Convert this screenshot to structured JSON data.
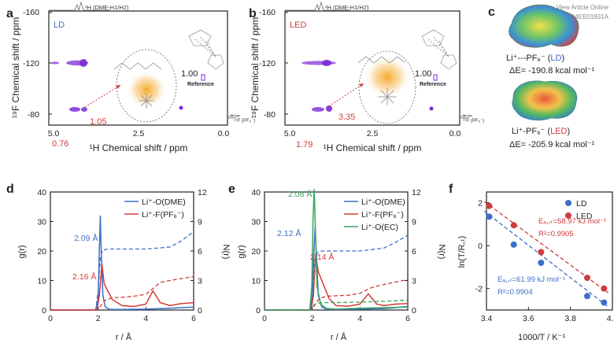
{
  "colors": {
    "blue": "#3b6fc9",
    "red": "#d13b3b",
    "green": "#3aa45a",
    "purple": "#7a2bd6",
    "orange": "#f0a020",
    "axis": "#222222",
    "text": "#222222"
  },
  "watermark": {
    "line1": "View Article Online",
    "line2": "DOI: 10.1039/D4EE01831A"
  },
  "panels": {
    "a": {
      "letter": "a",
      "label": "LD",
      "top_trace": "¹H (DME-H1/H2)",
      "side_trace": "¹⁹F (PF₆⁻)",
      "reference_value": "1.00",
      "reference_label": "Reference",
      "cross_peak_1": "1.05",
      "cross_peak_2": "0.76",
      "xlabel": "¹H Chemical shift / ppm",
      "ylabel": "¹⁹F Chemical shift / ppm",
      "xticks": [
        "5.0",
        "2.5",
        "0.0"
      ],
      "yticks": [
        "-160",
        "-120",
        "-80"
      ]
    },
    "b": {
      "letter": "b",
      "label": "LED",
      "top_trace": "¹H (DME-H1/H2)",
      "side_trace": "¹⁹F (PF₆⁻)",
      "reference_value": "1.00",
      "reference_label": "Reference",
      "cross_peak_1": "3.35",
      "cross_peak_2": "1.79",
      "xlabel": "¹H Chemical shift / ppm",
      "ylabel": "¹⁹F Chemical shift / ppm",
      "xticks": [
        "5.0",
        "2.5",
        "0.0"
      ],
      "yticks": [
        "-160",
        "-120",
        "-80"
      ]
    },
    "c": {
      "letter": "c",
      "ld_label_prefix": "Li⁺---PF₆⁻ (",
      "ld_label_tag": "LD",
      "ld_label_suffix": ")",
      "ld_energy": "ΔE= -190.8 kcal mol⁻¹",
      "led_label_prefix": "Li⁺-PF₆⁻ (",
      "led_label_tag": "LED",
      "led_label_suffix": ")",
      "led_energy": "ΔE= -205.9 kcal mol⁻¹"
    },
    "d": {
      "letter": "d",
      "legend": [
        "Li⁺-O(DME)",
        "Li⁺-F(PF₆⁻)"
      ],
      "peak_label_1": "2.09 Å",
      "peak_label_2": "2.16 Å",
      "xlabel": "r / Å",
      "ylabel_left": "g(r)",
      "ylabel_right": "N(r)"
    },
    "e": {
      "letter": "e",
      "legend": [
        "Li⁺-O(DME)",
        "Li⁺-F(PF₆⁻)",
        "Li⁺-O(EC)"
      ],
      "peak_label_1": "2.08 Å",
      "peak_label_2": "2.12 Å",
      "peak_label_3": "2.14 Å",
      "xlabel": "r / Å",
      "ylabel_left": "g(r)",
      "ylabel_right": "N(r)"
    },
    "f": {
      "letter": "f",
      "legend": [
        "LD",
        "LED"
      ],
      "led_ea_text": "Eₐ,꜀ₜ=58.97 kJ mol⁻¹",
      "led_r2_text": "R²=0.9905",
      "ld_ea_text": "Eₐ,꜀ₜ=61.99 kJ mol⁻¹",
      "ld_r2_text": "R²=0.9904",
      "xlabel": "1000/T / K⁻¹",
      "ylabel": "ln(T/R꜀ₜ)"
    }
  },
  "chart_data": [
    {
      "id": "d",
      "type": "line",
      "title": "",
      "xlabel": "r / Å",
      "ylabel": "g(r)",
      "ylabel_right": "N(r)",
      "xlim": [
        0,
        6
      ],
      "ylim": [
        0,
        40
      ],
      "ylim_right": [
        0,
        12
      ],
      "xticks": [
        0,
        2,
        4,
        6
      ],
      "yticks": [
        0,
        10,
        20,
        30,
        40
      ],
      "yticks_right": [
        0,
        3,
        6,
        9,
        12
      ],
      "series": [
        {
          "name": "Li⁺-O(DME)",
          "color": "#3b6fc9",
          "style": "solid",
          "x": [
            0,
            1.9,
            2.0,
            2.05,
            2.09,
            2.13,
            2.2,
            2.3,
            2.5,
            3.0,
            4.0,
            5.0,
            5.5,
            6.0
          ],
          "y": [
            0,
            0,
            4,
            20,
            32,
            20,
            5,
            1,
            0.2,
            0.2,
            0.3,
            0.6,
            0.8,
            1.0
          ]
        },
        {
          "name": "Li⁺-F(PF₆⁻)",
          "color": "#d13b3b",
          "style": "solid",
          "x": [
            0,
            1.95,
            2.05,
            2.16,
            2.25,
            2.4,
            2.6,
            3.0,
            3.5,
            4.0,
            4.3,
            4.6,
            5.0,
            5.5,
            6.0
          ],
          "y": [
            0,
            0,
            5,
            15.5,
            9,
            6.5,
            3.5,
            1.5,
            1.2,
            2.0,
            6.5,
            2.5,
            1.5,
            2.2,
            2.5
          ]
        },
        {
          "name": "N(r) Li⁺-O(DME)",
          "color": "#3b6fc9",
          "style": "dashed",
          "axis": "right",
          "x": [
            0,
            1.9,
            2.0,
            2.1,
            2.2,
            2.4,
            3.0,
            4.0,
            5.0,
            5.4,
            5.8,
            6.0
          ],
          "y": [
            0,
            0,
            2,
            5.5,
            6.1,
            6.2,
            6.2,
            6.2,
            6.4,
            6.9,
            7.6,
            8.0
          ]
        },
        {
          "name": "N(r) Li⁺-F(PF₆⁻)",
          "color": "#d13b3b",
          "style": "dashed",
          "axis": "right",
          "x": [
            0,
            1.95,
            2.1,
            2.3,
            2.6,
            3.0,
            3.5,
            4.0,
            4.3,
            4.6,
            5.0,
            5.5,
            6.0
          ],
          "y": [
            0,
            0,
            0.4,
            1.0,
            1.25,
            1.3,
            1.4,
            1.6,
            2.2,
            2.8,
            3.0,
            3.2,
            3.4
          ]
        }
      ]
    },
    {
      "id": "e",
      "type": "line",
      "title": "",
      "xlabel": "r / Å",
      "ylabel": "g(r)",
      "ylabel_right": "N(r)",
      "xlim": [
        0,
        6
      ],
      "ylim": [
        0,
        40
      ],
      "ylim_right": [
        0,
        12
      ],
      "xticks": [
        0,
        2,
        4,
        6
      ],
      "yticks": [
        0,
        10,
        20,
        30,
        40
      ],
      "yticks_right": [
        0,
        3,
        6,
        9,
        12
      ],
      "series": [
        {
          "name": "Li⁺-O(DME)",
          "color": "#3b6fc9",
          "style": "solid",
          "x": [
            0,
            1.9,
            2.0,
            2.06,
            2.12,
            2.18,
            2.25,
            2.4,
            2.6,
            3.0,
            4.0,
            5.0,
            5.5,
            6.0
          ],
          "y": [
            0,
            0,
            4,
            18,
            28,
            18,
            5,
            1,
            0.3,
            0.2,
            0.3,
            0.5,
            0.8,
            1.2
          ]
        },
        {
          "name": "Li⁺-F(PF₆⁻)",
          "color": "#d13b3b",
          "style": "solid",
          "x": [
            0,
            1.95,
            2.05,
            2.14,
            2.25,
            2.45,
            2.7,
            3.0,
            3.5,
            4.0,
            4.35,
            4.7,
            5.0,
            5.5,
            6.0
          ],
          "y": [
            0,
            0,
            5,
            19,
            13,
            9,
            4,
            1.5,
            1.3,
            2.0,
            5.5,
            2.0,
            1.5,
            2.0,
            2.2
          ]
        },
        {
          "name": "Li⁺-O(EC)",
          "color": "#3aa45a",
          "style": "solid",
          "x": [
            0,
            1.9,
            1.98,
            2.03,
            2.08,
            2.13,
            2.2,
            2.35,
            2.6,
            3.0,
            4.0,
            5.0,
            6.0
          ],
          "y": [
            0,
            0,
            8,
            30,
            41,
            28,
            8,
            2,
            0.5,
            0.3,
            0.6,
            0.8,
            1.0
          ]
        },
        {
          "name": "N(r) Li⁺-O(DME)",
          "color": "#3b6fc9",
          "style": "dashed",
          "axis": "right",
          "x": [
            0,
            1.9,
            2.0,
            2.1,
            2.2,
            2.4,
            3.0,
            4.0,
            5.0,
            5.5,
            6.0
          ],
          "y": [
            0,
            0,
            1.5,
            5.0,
            5.8,
            6.0,
            6.0,
            6.0,
            6.3,
            6.9,
            7.6
          ]
        },
        {
          "name": "N(r) Li⁺-F(PF₆⁻)",
          "color": "#d13b3b",
          "style": "dashed",
          "axis": "right",
          "x": [
            0,
            1.95,
            2.1,
            2.3,
            2.6,
            3.0,
            3.5,
            4.0,
            4.4,
            4.8,
            5.2,
            5.6,
            6.0
          ],
          "y": [
            0,
            0,
            0.5,
            1.2,
            1.4,
            1.45,
            1.5,
            1.7,
            2.2,
            2.5,
            2.7,
            2.9,
            3.1
          ]
        },
        {
          "name": "N(r) Li⁺-O(EC)",
          "color": "#3aa45a",
          "style": "dashed",
          "axis": "right",
          "x": [
            0,
            1.9,
            2.0,
            2.1,
            2.2,
            2.5,
            3.0,
            4.0,
            5.0,
            6.0
          ],
          "y": [
            0,
            0,
            0.3,
            0.6,
            0.7,
            0.75,
            0.75,
            0.8,
            0.9,
            1.0
          ]
        }
      ]
    },
    {
      "id": "f",
      "type": "scatter",
      "title": "",
      "xlabel": "1000/T / K⁻¹",
      "ylabel": "ln(T/R꜀ₜ)",
      "xlim": [
        3.4,
        4.0
      ],
      "ylim": [
        -3,
        2.5
      ],
      "xticks": [
        3.4,
        3.6,
        3.8,
        4.0
      ],
      "yticks": [
        -2,
        0,
        2
      ],
      "series": [
        {
          "name": "LD",
          "color": "#3b6fc9",
          "x": [
            3.413,
            3.53,
            3.66,
            3.88,
            3.96
          ],
          "y": [
            1.35,
            0.05,
            -0.8,
            -2.35,
            -2.65
          ],
          "fit": {
            "x": [
              3.39,
              3.98
            ],
            "y": [
              1.6,
              -2.85
            ]
          }
        },
        {
          "name": "LED",
          "color": "#d13b3b",
          "x": [
            3.413,
            3.53,
            3.66,
            3.88,
            3.96
          ],
          "y": [
            1.85,
            0.95,
            -0.3,
            -1.5,
            -2.0
          ],
          "fit": {
            "x": [
              3.39,
              3.98
            ],
            "y": [
              2.05,
              -2.2
            ]
          }
        }
      ]
    }
  ]
}
